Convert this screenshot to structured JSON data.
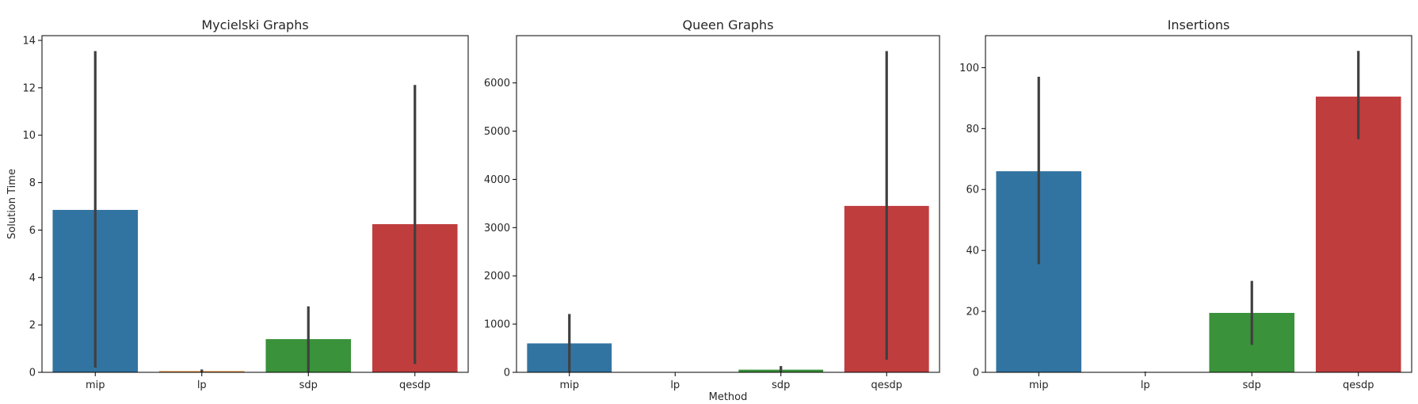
{
  "figure": {
    "ylabel": "Solution Time",
    "xlabel": "Method",
    "error_bar_color": "#3f3f3f",
    "axes_color": "#000000"
  },
  "chart_data": [
    {
      "type": "bar",
      "title": "Mycielski Graphs",
      "categories": [
        "mip",
        "lp",
        "sdp",
        "qesdp"
      ],
      "colors": [
        "#3274a1",
        "#e1812c",
        "#3a923a",
        "#c03d3e"
      ],
      "values": [
        6.85,
        0.05,
        1.4,
        6.25
      ],
      "error_low": [
        0.2,
        0.0,
        0.0,
        0.35
      ],
      "error_high": [
        13.55,
        0.12,
        2.78,
        12.12
      ],
      "ylim": [
        0,
        14.2
      ],
      "yticks": [
        0,
        2,
        4,
        6,
        8,
        10,
        12,
        14
      ],
      "ylabel": "Solution Time",
      "xlabel": ""
    },
    {
      "type": "bar",
      "title": "Queen Graphs",
      "categories": [
        "mip",
        "lp",
        "sdp",
        "qesdp"
      ],
      "colors": [
        "#3274a1",
        "#e1812c",
        "#3a923a",
        "#c03d3e"
      ],
      "values": [
        600,
        0,
        55,
        3450
      ],
      "error_low": [
        0,
        0,
        10,
        260
      ],
      "error_high": [
        1210,
        0,
        130,
        6660
      ],
      "ylim": [
        0,
        6980
      ],
      "yticks": [
        0,
        1000,
        2000,
        3000,
        4000,
        5000,
        6000
      ],
      "ylabel": "",
      "xlabel": "Method"
    },
    {
      "type": "bar",
      "title": "Insertions",
      "categories": [
        "mip",
        "lp",
        "sdp",
        "qesdp"
      ],
      "colors": [
        "#3274a1",
        "#e1812c",
        "#3a923a",
        "#c03d3e"
      ],
      "values": [
        66,
        0.1,
        19.5,
        90.5
      ],
      "error_low": [
        35.5,
        0.0,
        9.0,
        76.5
      ],
      "error_high": [
        97,
        0.2,
        30,
        105.5
      ],
      "ylim": [
        0,
        110.5
      ],
      "yticks": [
        0,
        20,
        40,
        60,
        80,
        100
      ],
      "ylabel": "",
      "xlabel": ""
    }
  ]
}
